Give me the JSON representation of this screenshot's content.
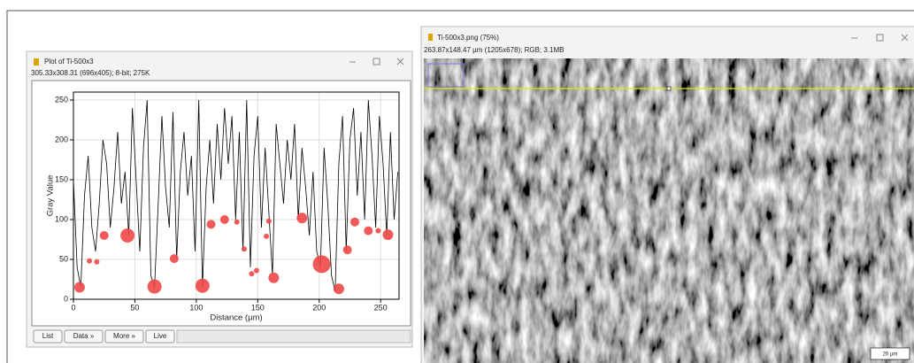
{
  "plot_window": {
    "title": "Plot of Ti-500x3",
    "info": "305.33x308.31   (696x405); 8-bit; 275K",
    "buttons": [
      "List",
      "Data »",
      "More »",
      "Live"
    ]
  },
  "image_window": {
    "title": "Ti-500x3.png (75%)",
    "info": "263.87x148.47 µm (1205x678); RGB; 3.1MB",
    "scale_bar": "20 µm"
  },
  "chart_data": {
    "type": "line",
    "xlabel": "Distance (µm)",
    "ylabel": "Gray Value",
    "color": "#000000",
    "x": [
      0,
      3,
      6,
      9,
      12,
      15,
      18,
      21,
      24,
      27,
      30,
      33,
      36,
      39,
      42,
      45,
      48,
      51,
      54,
      57,
      60,
      63,
      66,
      69,
      72,
      75,
      78,
      81,
      84,
      87,
      90,
      93,
      96,
      99,
      102,
      105,
      108,
      111,
      114,
      117,
      120,
      123,
      126,
      129,
      132,
      135,
      138,
      141,
      144,
      147,
      150,
      153,
      156,
      159,
      162,
      165,
      168,
      171,
      174,
      177,
      180,
      183,
      186,
      189,
      192,
      195,
      198,
      201,
      204,
      207,
      210,
      213,
      216,
      219,
      222,
      225,
      228,
      231,
      234,
      237,
      240,
      243,
      246,
      249,
      252,
      255,
      258,
      261,
      264
    ],
    "values": [
      150,
      40,
      15,
      130,
      180,
      90,
      60,
      120,
      200,
      170,
      90,
      140,
      210,
      120,
      160,
      80,
      240,
      150,
      60,
      190,
      250,
      30,
      15,
      120,
      230,
      140,
      90,
      235,
      50,
      160,
      210,
      130,
      180,
      60,
      250,
      15,
      140,
      200,
      120,
      220,
      150,
      240,
      170,
      230,
      100,
      210,
      60,
      250,
      40,
      180,
      230,
      90,
      190,
      110,
      30,
      220,
      170,
      120,
      200,
      150,
      220,
      100,
      190,
      140,
      80,
      160,
      60,
      40,
      190,
      120,
      30,
      10,
      170,
      230,
      60,
      200,
      240,
      130,
      210,
      100,
      250,
      180,
      90,
      230,
      170,
      80,
      210,
      100,
      160
    ],
    "markers": {
      "color": "#f04848",
      "x": [
        5,
        13,
        19,
        25,
        44,
        66,
        82,
        105,
        112,
        123,
        133,
        139,
        145,
        149,
        157,
        159,
        163,
        186,
        202,
        216,
        223,
        229,
        240,
        248,
        256
      ],
      "values": [
        15,
        48,
        47,
        80,
        80,
        16,
        51,
        17,
        94,
        100,
        97,
        63,
        32,
        36,
        79,
        98,
        27,
        102,
        44,
        13,
        62,
        97,
        86,
        86,
        81
      ],
      "sizes": [
        3,
        1.5,
        1.5,
        2.5,
        4,
        4,
        2.5,
        4,
        2.5,
        2.5,
        1.5,
        1.5,
        1.5,
        1.5,
        1.5,
        1.5,
        3,
        3,
        5,
        3,
        2.5,
        2.5,
        2.5,
        1.5,
        3
      ]
    },
    "xlim": [
      0,
      265
    ],
    "ylim": [
      0,
      260
    ],
    "xticks": [
      0,
      50,
      100,
      150,
      200,
      250
    ],
    "yticks": [
      0,
      50,
      100,
      150,
      200,
      250
    ],
    "grid": true
  }
}
